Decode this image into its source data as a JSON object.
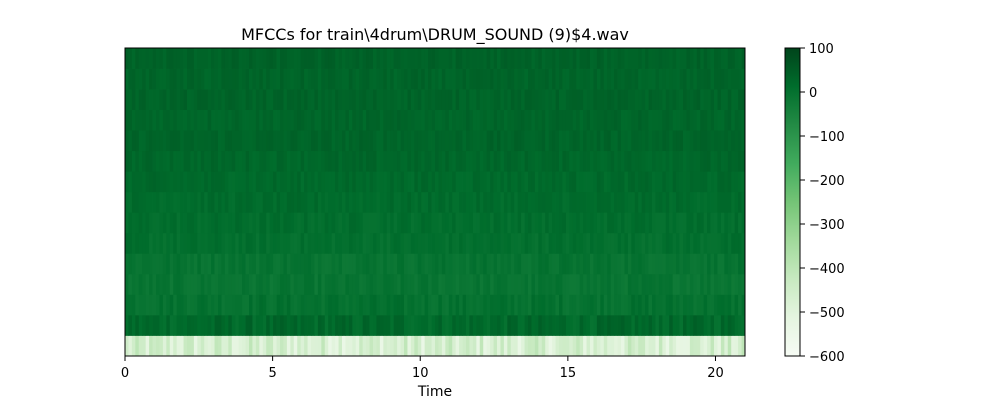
{
  "chart_data": {
    "type": "heatmap",
    "title": "MFCCs for train\\4drum\\DRUM_SOUND (9)$4.wav",
    "xlabel": "Time",
    "ylabel": "",
    "xlim": [
      0,
      21
    ],
    "x_ticks": [
      0,
      5,
      10,
      15,
      20
    ],
    "x_tick_labels": [
      "0",
      "5",
      "10",
      "15",
      "20"
    ],
    "n_coefficients": 15,
    "n_frames": 180,
    "coefficient_mean_values": [
      -470,
      20,
      0,
      -10,
      -5,
      5,
      10,
      15,
      20,
      25,
      30,
      28,
      32,
      30,
      35
    ],
    "coefficient_variation": [
      70,
      25,
      18,
      15,
      15,
      14,
      14,
      13,
      13,
      12,
      12,
      12,
      12,
      12,
      12
    ],
    "colormap": "Greens",
    "colorbar": {
      "min": -600,
      "max": 100,
      "ticks": [
        100,
        0,
        -100,
        -200,
        -300,
        -400,
        -500,
        -600
      ],
      "tick_labels": [
        "100",
        "0",
        "−100",
        "−200",
        "−300",
        "−400",
        "−500",
        "−600"
      ]
    },
    "colors": {
      "low": "#f7fcf5",
      "mid": "#74c476",
      "high": "#00441b"
    }
  }
}
